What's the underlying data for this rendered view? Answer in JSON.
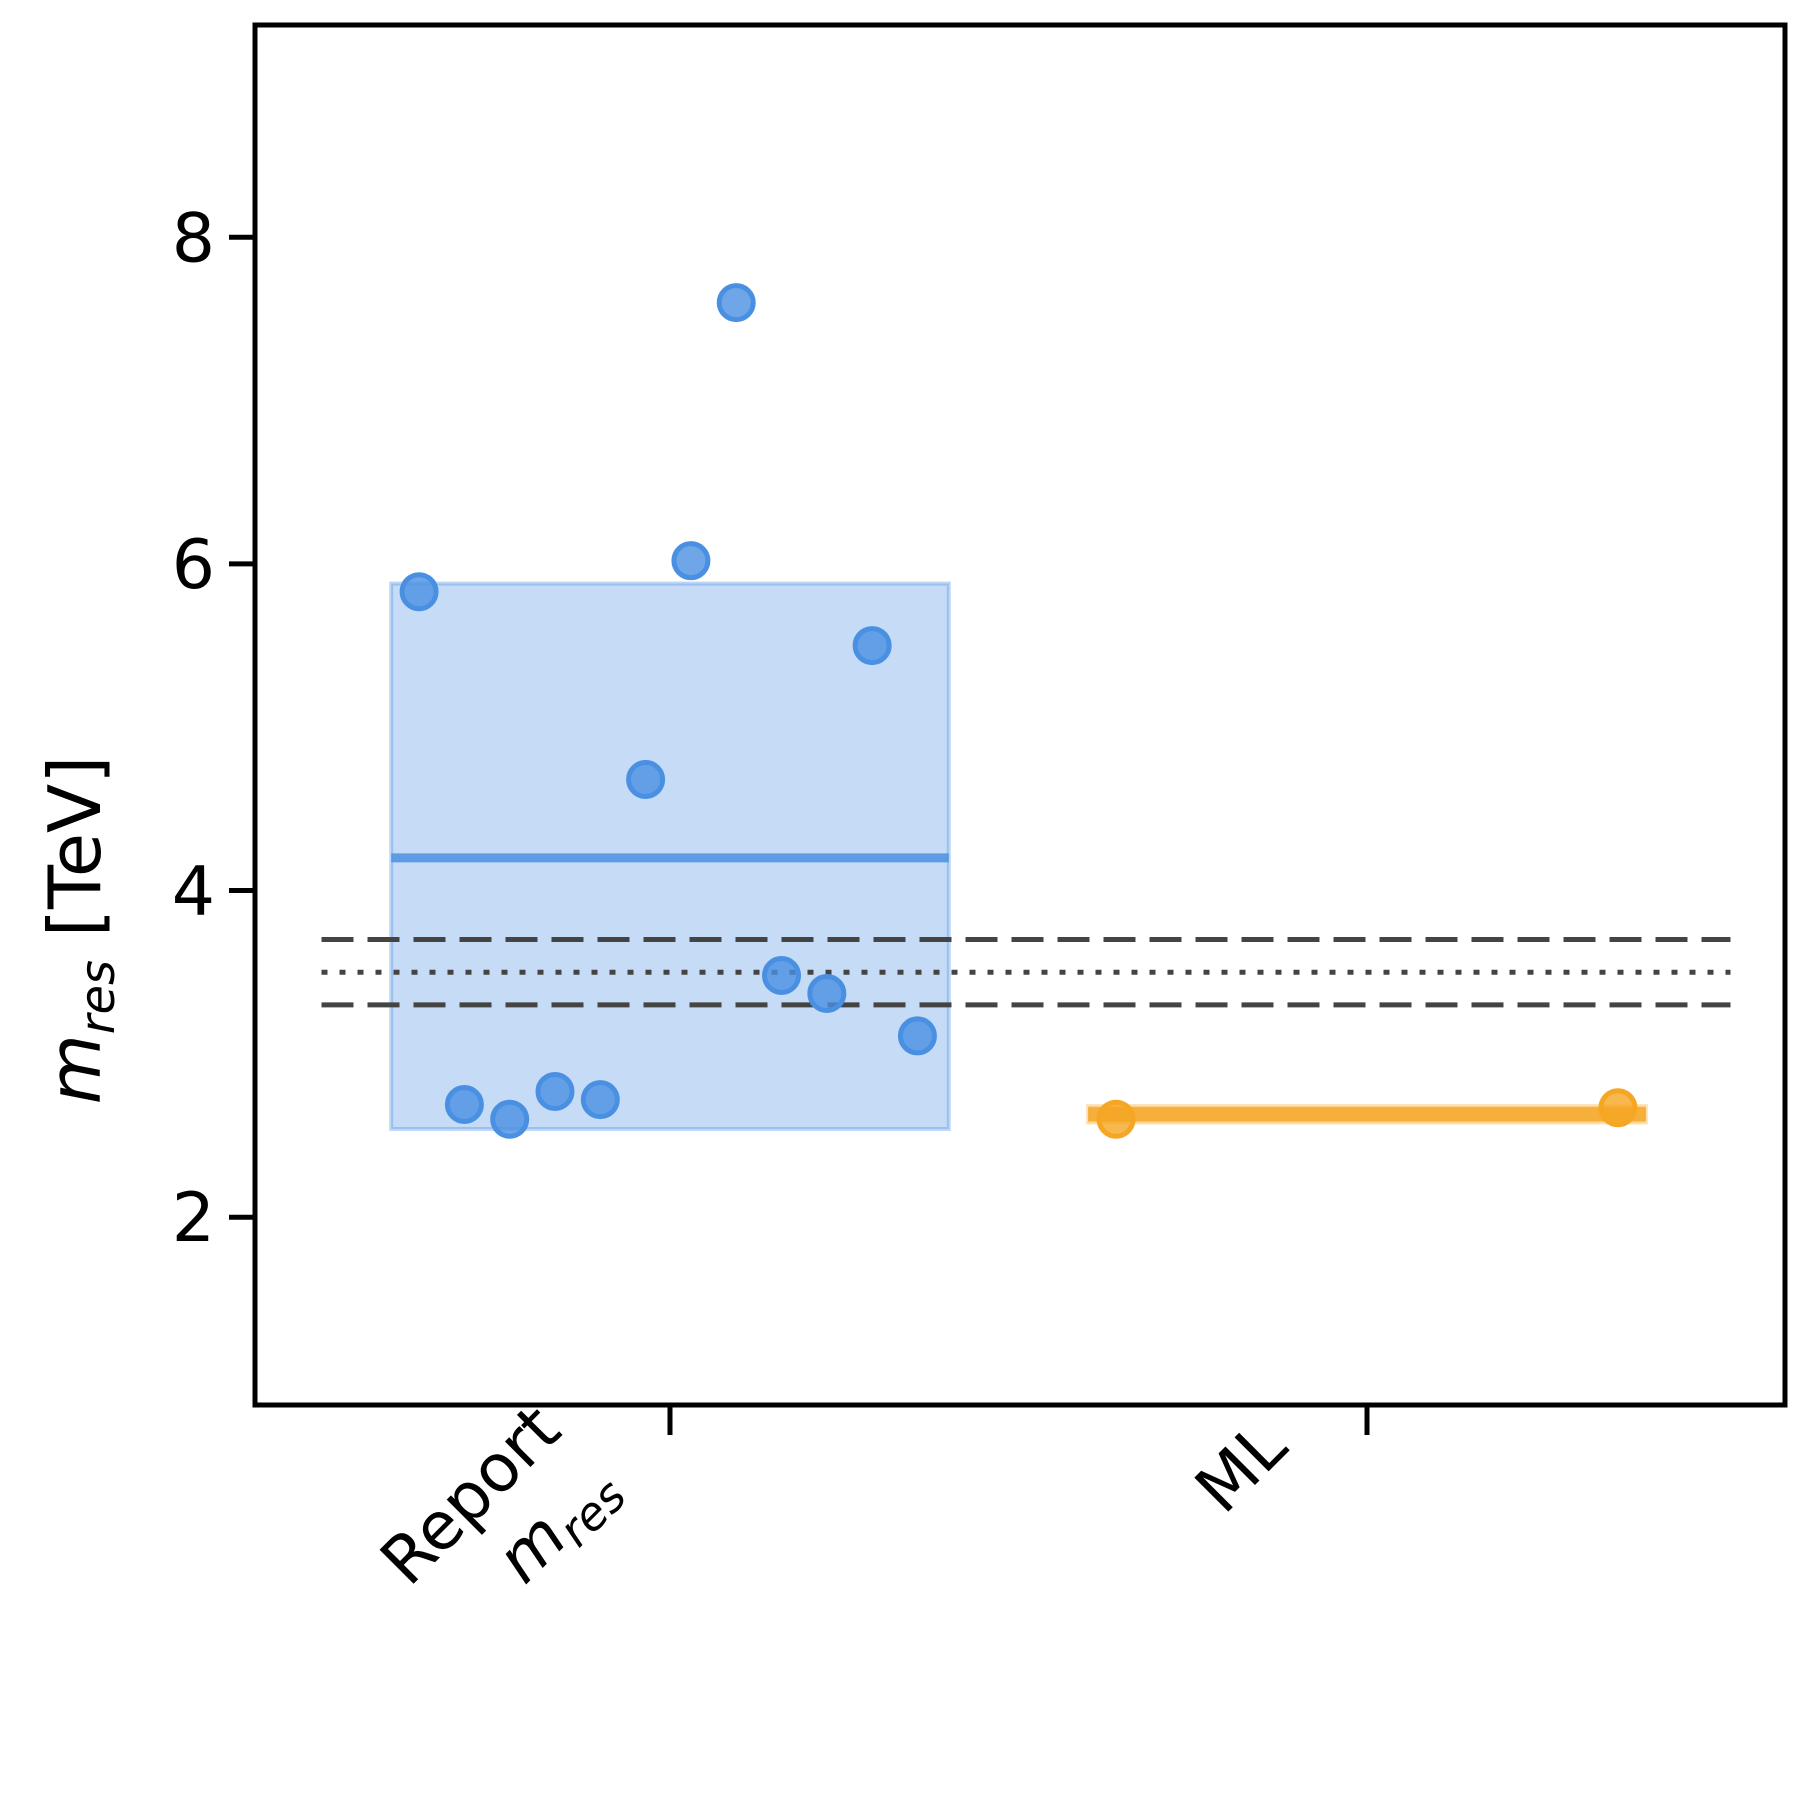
{
  "chart_data": {
    "type": "scatter",
    "title": "",
    "ylabel": {
      "main": "m",
      "sub": "res",
      "unit": "[TeV]"
    },
    "ylim": [
      0.85,
      9.3
    ],
    "yticks": [
      2,
      4,
      6,
      8
    ],
    "grid": false,
    "categories": [
      {
        "label_lines": [
          "Report",
          "m_res"
        ],
        "label_line1": "Report",
        "label_line2_main": "m",
        "label_line2_sub": "res"
      },
      {
        "label_lines": [
          "ML"
        ],
        "label_line1": "ML"
      }
    ],
    "series": [
      {
        "category": 0,
        "color": "#4a90e2",
        "points": [
          {
            "x": -0.36,
            "y": 5.83
          },
          {
            "x": -0.295,
            "y": 2.69
          },
          {
            "x": -0.23,
            "y": 2.6
          },
          {
            "x": -0.165,
            "y": 2.77
          },
          {
            "x": -0.1,
            "y": 2.72
          },
          {
            "x": -0.035,
            "y": 4.68
          },
          {
            "x": 0.03,
            "y": 6.02
          },
          {
            "x": 0.095,
            "y": 7.6
          },
          {
            "x": 0.16,
            "y": 3.48
          },
          {
            "x": 0.225,
            "y": 3.37
          },
          {
            "x": 0.29,
            "y": 5.5
          },
          {
            "x": 0.355,
            "y": 3.11
          }
        ],
        "mean": 4.2,
        "band": [
          2.54,
          5.88
        ],
        "band_x": [
          -0.4,
          0.4
        ]
      },
      {
        "category": 1,
        "color": "#f5a623",
        "points": [
          {
            "x": -0.36,
            "y": 2.6
          },
          {
            "x": 0.36,
            "y": 2.67
          }
        ],
        "mean": 2.63,
        "band": [
          2.58,
          2.68
        ],
        "band_x": [
          -0.4,
          0.4
        ]
      }
    ],
    "reference_lines": [
      {
        "y": 3.5,
        "style": "dotted",
        "color": "#444444"
      },
      {
        "y": 3.7,
        "style": "dashed",
        "color": "#444444"
      },
      {
        "y": 3.3,
        "style": "dashed",
        "color": "#444444"
      }
    ],
    "reference_x_range": [
      -0.5,
      1.5
    ]
  }
}
